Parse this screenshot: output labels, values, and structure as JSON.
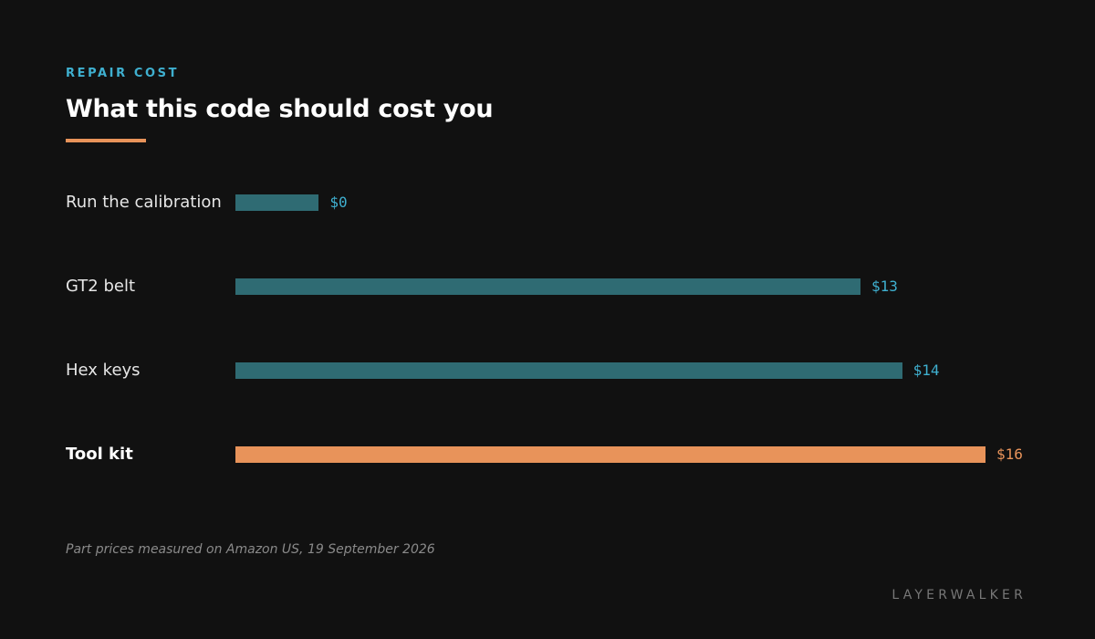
{
  "header": {
    "eyebrow": "REPAIR COST",
    "title": "What this code should cost you"
  },
  "chart_data": {
    "type": "bar",
    "orientation": "horizontal",
    "categories": [
      "Run the calibration",
      "GT2 belt",
      "Hex keys",
      "Tool kit"
    ],
    "values": [
      0,
      13,
      14,
      16
    ],
    "value_labels": [
      "$0",
      "$13",
      "$14",
      "$16"
    ],
    "highlight_index": 3,
    "unit": "$",
    "xlim": [
      -2,
      16
    ],
    "grid": false,
    "legend": "none"
  },
  "colors": {
    "accent": "#3fb0d0",
    "bar": "#2f6b73",
    "highlight": "#e8935a",
    "background": "#111111"
  },
  "footer": {
    "note": "Part prices measured on Amazon US, 19 September 2026",
    "brand": "LAYERWALKER"
  }
}
